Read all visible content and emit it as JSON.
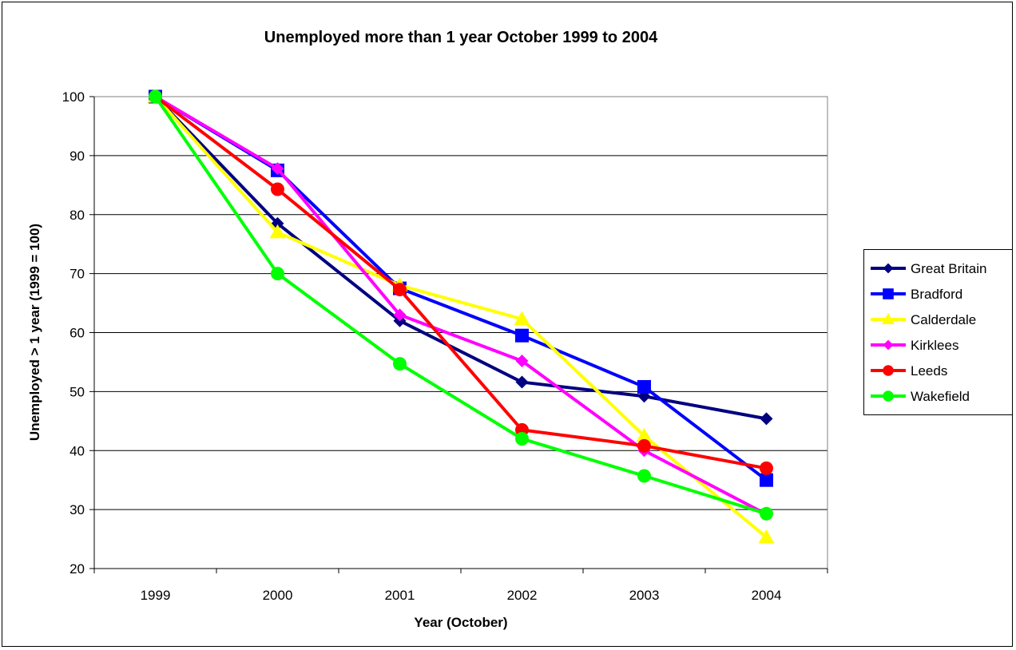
{
  "chart_data": {
    "type": "line",
    "title": "Unemployed more than 1 year October 1999 to 2004",
    "xlabel": "Year (October)",
    "ylabel": "Unemployed > 1 year (1999 = 100)",
    "categories": [
      "1999",
      "2000",
      "2001",
      "2002",
      "2003",
      "2004"
    ],
    "ylim": [
      20,
      100
    ],
    "yticks": [
      "20",
      "30",
      "40",
      "50",
      "60",
      "70",
      "80",
      "90",
      "100"
    ],
    "grid": true,
    "legend_position": "right",
    "series": [
      {
        "name": "Great Britain",
        "color": "#000080",
        "marker": "diamond",
        "values": [
          100,
          78.5,
          62,
          51.6,
          49.2,
          45.4
        ]
      },
      {
        "name": "Bradford",
        "color": "#0000FF",
        "marker": "square",
        "values": [
          100,
          87.5,
          67.5,
          59.5,
          50.8,
          35
        ]
      },
      {
        "name": "Calderdale",
        "color": "#FFFF00",
        "marker": "triangle",
        "values": [
          100,
          77,
          68,
          62.3,
          42.5,
          25.3
        ]
      },
      {
        "name": "Kirklees",
        "color": "#FF00FF",
        "marker": "diamond",
        "values": [
          100,
          87.8,
          63,
          55.2,
          40,
          29.2
        ]
      },
      {
        "name": "Leeds",
        "color": "#FF0000",
        "marker": "circle",
        "values": [
          100,
          84.3,
          67.3,
          43.5,
          40.8,
          37
        ]
      },
      {
        "name": "Wakefield",
        "color": "#00FF00",
        "marker": "circle",
        "values": [
          100,
          70,
          54.7,
          42,
          35.7,
          29.3
        ]
      }
    ]
  }
}
